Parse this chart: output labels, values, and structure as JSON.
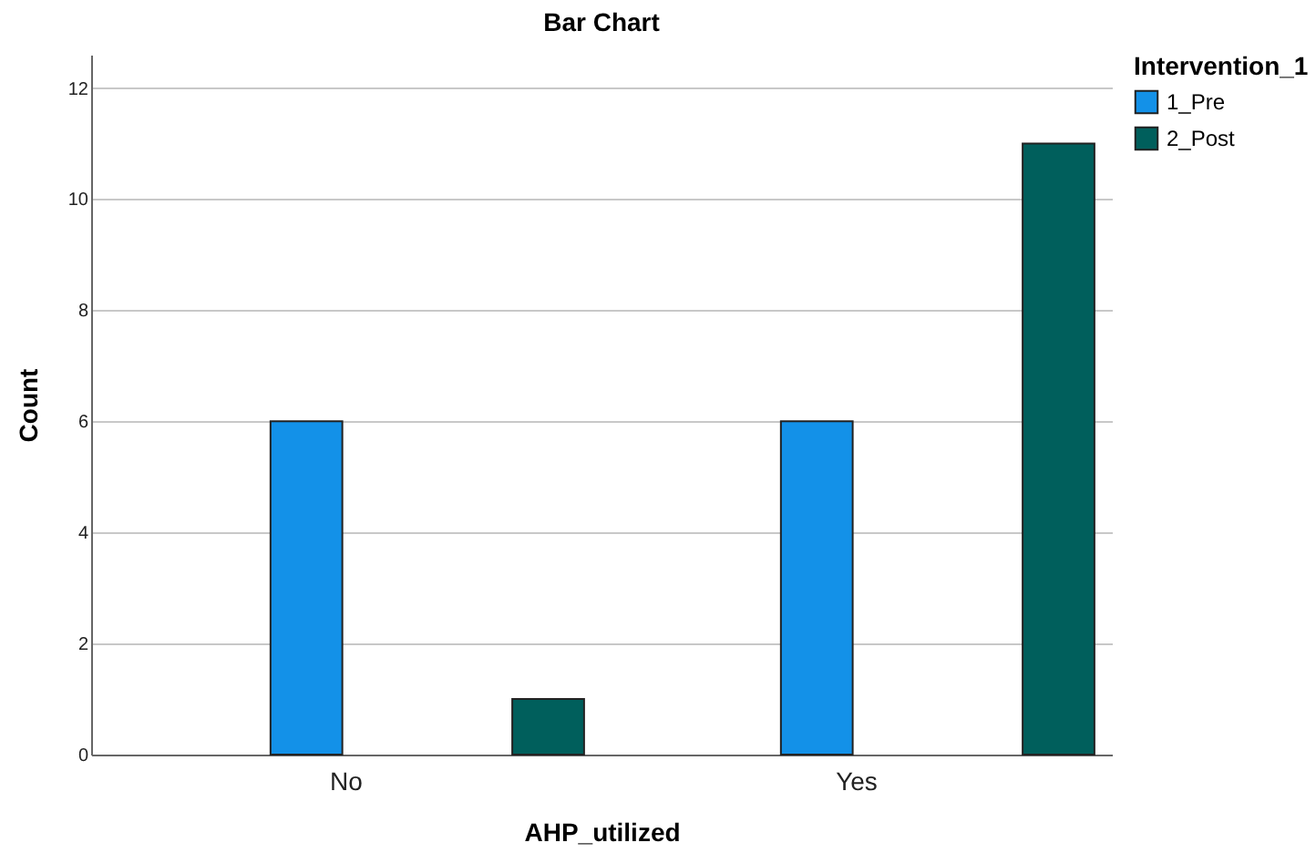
{
  "chart_data": {
    "type": "bar",
    "title": "Bar Chart",
    "xlabel": "AHP_utilized",
    "ylabel": "Count",
    "legend_title": "Intervention_1",
    "categories": [
      "No",
      "Yes"
    ],
    "series": [
      {
        "name": "1_Pre",
        "color": "#1391e8",
        "values": [
          6,
          6
        ]
      },
      {
        "name": "2_Post",
        "color": "#005f5c",
        "values": [
          1,
          11
        ]
      }
    ],
    "ylim": [
      0,
      12.6
    ],
    "yticks": [
      0,
      2,
      4,
      6,
      8,
      10,
      12
    ],
    "grid": "y",
    "legend": "top right"
  }
}
